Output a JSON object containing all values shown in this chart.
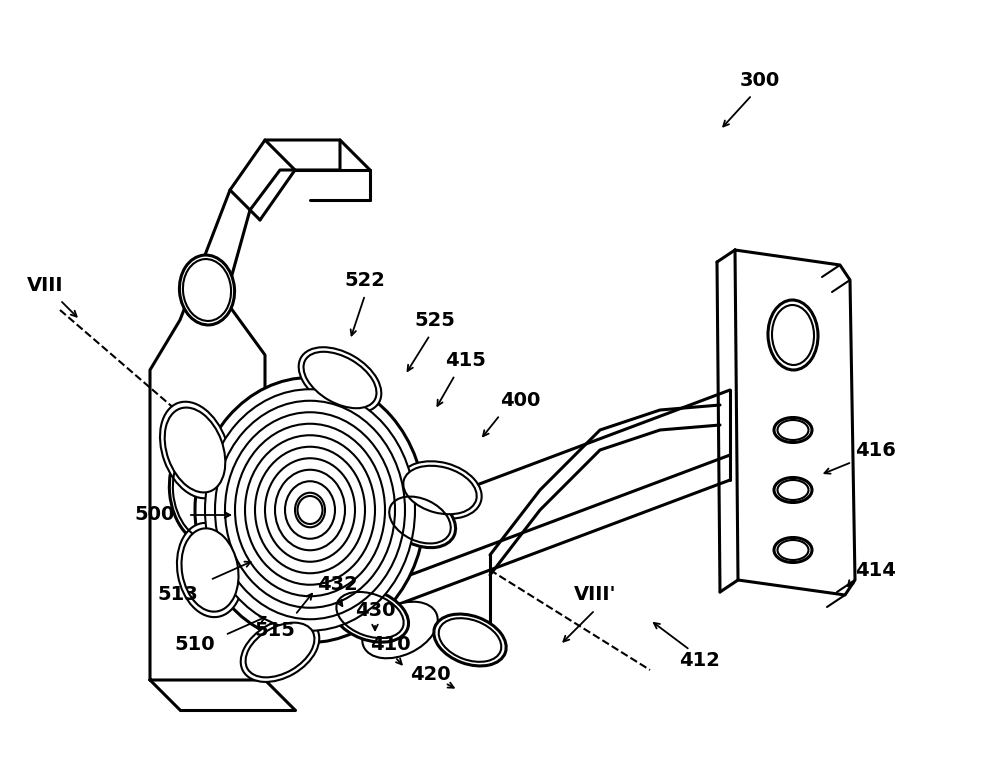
{
  "bg_color": "#ffffff",
  "line_color": "#000000",
  "lw": 2.2,
  "tlw": 1.5,
  "fs": 14,
  "fig_w": 10.0,
  "fig_h": 7.64,
  "dpi": 100
}
